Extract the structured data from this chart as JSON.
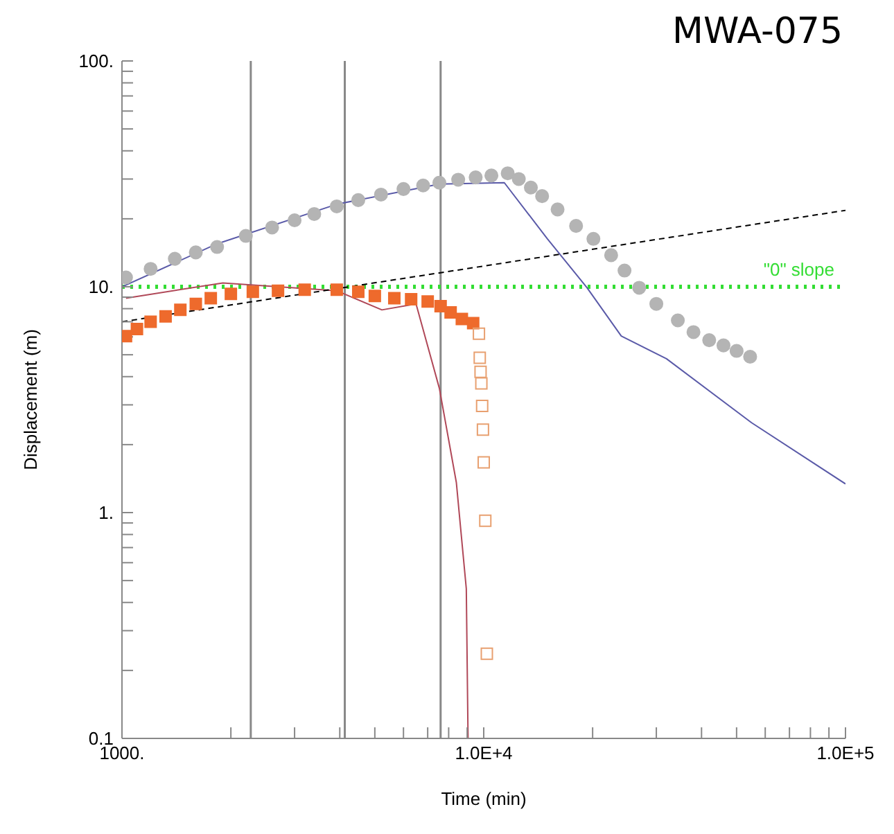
{
  "chart_data": {
    "type": "scatter",
    "title": "MWA-075",
    "xlabel": "Time (min)",
    "ylabel": "Displacement (m)",
    "log": "xy",
    "xlim": [
      1000,
      100000
    ],
    "ylim": [
      0.1,
      100
    ],
    "xticks": [
      {
        "value": 1000,
        "label": "1000."
      },
      {
        "value": 2000,
        "label": null
      },
      {
        "value": 3000,
        "label": null
      },
      {
        "value": 4000,
        "label": null
      },
      {
        "value": 5000,
        "label": null
      },
      {
        "value": 6000,
        "label": null
      },
      {
        "value": 7000,
        "label": null
      },
      {
        "value": 8000,
        "label": null
      },
      {
        "value": 9000,
        "label": null
      },
      {
        "value": 10000,
        "label": "1.0E+4"
      },
      {
        "value": 20000,
        "label": null
      },
      {
        "value": 30000,
        "label": null
      },
      {
        "value": 40000,
        "label": null
      },
      {
        "value": 50000,
        "label": null
      },
      {
        "value": 60000,
        "label": null
      },
      {
        "value": 70000,
        "label": null
      },
      {
        "value": 80000,
        "label": null
      },
      {
        "value": 90000,
        "label": null
      },
      {
        "value": 100000,
        "label": "1.0E+5"
      }
    ],
    "yticks": [
      {
        "value": 0.1,
        "label": "0.1"
      },
      {
        "value": 0.2,
        "label": null
      },
      {
        "value": 0.3,
        "label": null
      },
      {
        "value": 0.4,
        "label": null
      },
      {
        "value": 0.5,
        "label": null
      },
      {
        "value": 0.6,
        "label": null
      },
      {
        "value": 0.7,
        "label": null
      },
      {
        "value": 0.8,
        "label": null
      },
      {
        "value": 0.9,
        "label": null
      },
      {
        "value": 1,
        "label": "1."
      },
      {
        "value": 2,
        "label": null
      },
      {
        "value": 3,
        "label": null
      },
      {
        "value": 4,
        "label": null
      },
      {
        "value": 5,
        "label": null
      },
      {
        "value": 6,
        "label": null
      },
      {
        "value": 7,
        "label": null
      },
      {
        "value": 8,
        "label": null
      },
      {
        "value": 9,
        "label": null
      },
      {
        "value": 10,
        "label": "10."
      },
      {
        "value": 20,
        "label": null
      },
      {
        "value": 30,
        "label": null
      },
      {
        "value": 40,
        "label": null
      },
      {
        "value": 50,
        "label": null
      },
      {
        "value": 60,
        "label": null
      },
      {
        "value": 70,
        "label": null
      },
      {
        "value": 80,
        "label": null
      },
      {
        "value": 90,
        "label": null
      },
      {
        "value": 100,
        "label": "100."
      }
    ],
    "series": [
      {
        "marker": "circle",
        "color": "#b4b4b4",
        "x": [
          1026,
          1200,
          1400,
          1600,
          1832,
          2200,
          2600,
          3000,
          3400,
          3924,
          4500,
          5200,
          6000,
          6800,
          7540,
          8500,
          9500,
          10500,
          11650,
          12500,
          13500,
          14500,
          16000,
          18000,
          20100,
          22500,
          24500,
          26900,
          30000,
          34400,
          38000,
          42000,
          46000,
          50000,
          54500
        ],
        "values": [
          11,
          12,
          13.3,
          14.2,
          15,
          16.8,
          18.3,
          19.7,
          21,
          22.7,
          24.2,
          25.6,
          27.1,
          28.1,
          28.9,
          29.8,
          30.5,
          31.1,
          31.8,
          30,
          27.5,
          25.2,
          22,
          18.6,
          16.3,
          13.8,
          11.8,
          9.9,
          8.4,
          7.1,
          6.3,
          5.8,
          5.5,
          5.2,
          4.9
        ]
      },
      {
        "type": "line",
        "marker": "none",
        "color": "#5a5aa8",
        "x": [
          1000,
          1832,
          3924,
          7540,
          11400,
          15000,
          19300,
          24000,
          32000,
          55000,
          100000
        ],
        "values": [
          10,
          15.5,
          23.2,
          28.5,
          28.9,
          16.3,
          9.9,
          6.05,
          4.8,
          2.5,
          1.34
        ]
      },
      {
        "marker": "square",
        "color": "#ee6a2c",
        "x": [
          1026,
          1100,
          1200,
          1320,
          1450,
          1600,
          1760,
          2000,
          2300,
          2700,
          3200,
          3924,
          4500,
          5000,
          5660,
          6300,
          7000,
          7600,
          8100,
          8700,
          9350
        ],
        "values": [
          6.05,
          6.5,
          7,
          7.4,
          7.9,
          8.4,
          8.9,
          9.3,
          9.5,
          9.6,
          9.7,
          9.7,
          9.5,
          9.1,
          8.9,
          8.8,
          8.6,
          8.2,
          7.7,
          7.2,
          6.9
        ]
      },
      {
        "marker": "square",
        "color": "#e8a070",
        "x": [
          9700,
          9750,
          9800,
          9850,
          9900,
          9950,
          10000,
          10100,
          10200
        ],
        "values": [
          6.2,
          4.85,
          4.2,
          3.73,
          2.97,
          2.33,
          1.67,
          0.92,
          0.237
        ]
      },
      {
        "type": "line",
        "marker": "none",
        "color": "#b04858",
        "x": [
          1026,
          1900,
          3924,
          5230,
          6500,
          7540,
          8400,
          8950,
          9050
        ],
        "values": [
          8.9,
          10.4,
          9.6,
          7.9,
          8.4,
          3.55,
          1.36,
          0.46,
          0.1
        ]
      },
      {
        "type": "line",
        "marker": "none",
        "line_style": "dashed",
        "color": "#000000",
        "x": [
          1000,
          100000
        ],
        "values": [
          7,
          21.8
        ]
      }
    ],
    "ref_lines": [
      {
        "axis": "x",
        "value": 2270,
        "label": null,
        "color": "#888888"
      },
      {
        "axis": "x",
        "value": 4130,
        "label": null,
        "color": "#888888"
      },
      {
        "axis": "x",
        "value": 7600,
        "label": null,
        "color": "#888888"
      },
      {
        "axis": "y",
        "value": 10,
        "label": "\"0\" slope",
        "color": "#33dd33",
        "line_style": "dotted"
      }
    ]
  }
}
